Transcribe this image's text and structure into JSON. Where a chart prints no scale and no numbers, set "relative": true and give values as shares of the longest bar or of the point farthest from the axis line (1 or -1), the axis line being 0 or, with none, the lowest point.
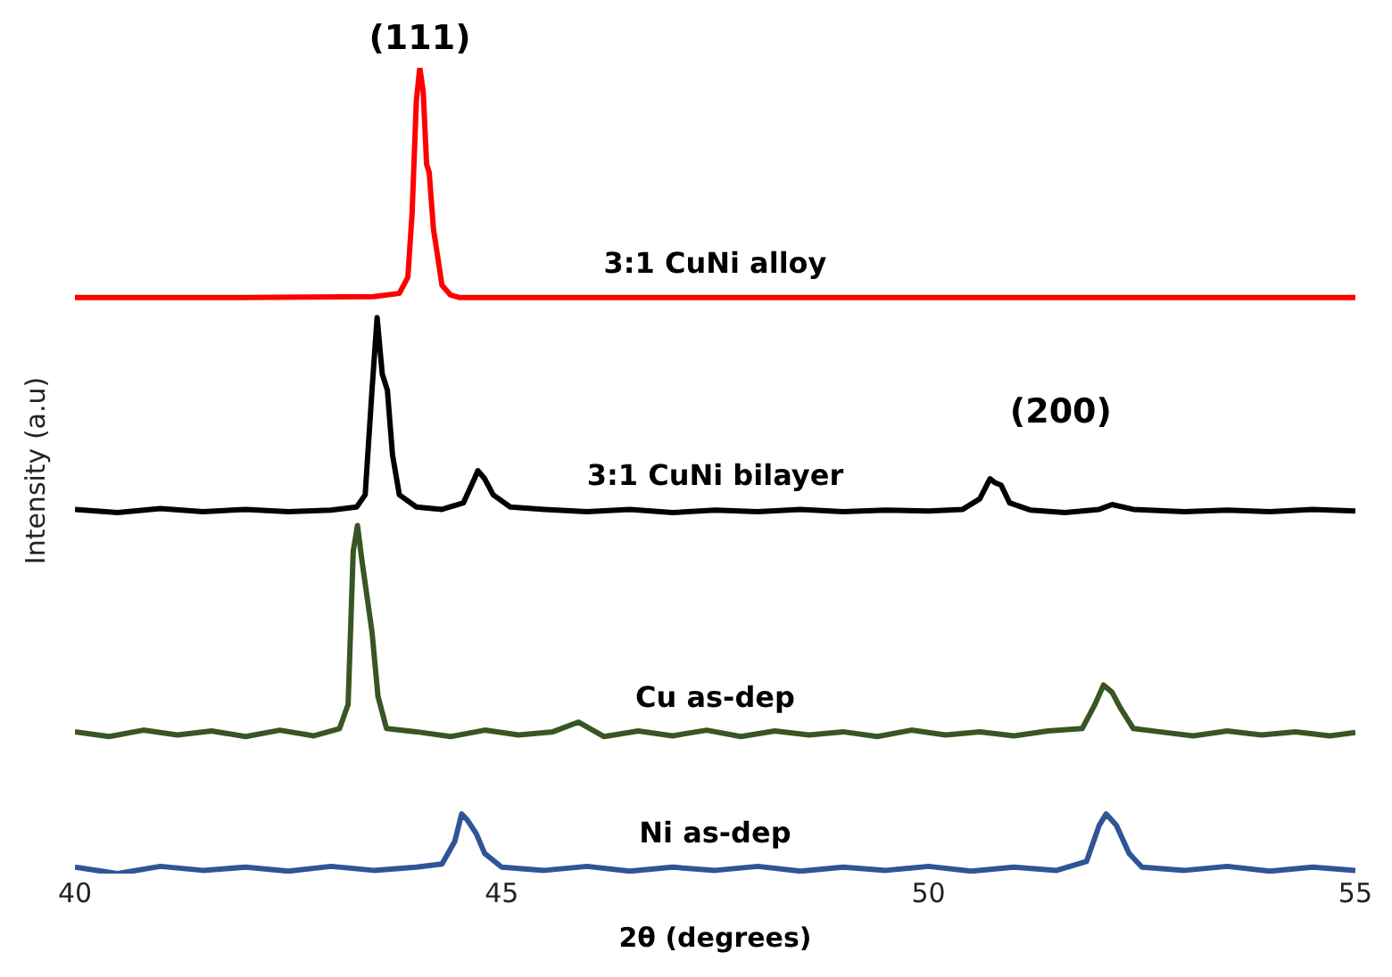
{
  "chart_data": {
    "type": "line",
    "relative": true,
    "xlabel": "2θ (degrees)",
    "ylabel": "Intensity (a.u)",
    "xlim": [
      40,
      55
    ],
    "xticks": [
      40,
      45,
      50,
      55
    ],
    "grid": false,
    "legend": false,
    "marker": "none",
    "line_style": "solid",
    "annotations": [
      {
        "text": "(111)",
        "x": 44.04,
        "y": 1.0
      },
      "(200)"
    ],
    "series": [
      {
        "name": "3:1 CuNi alloy",
        "color": "#ff0000",
        "x": [
          40,
          42,
          43.5,
          43.8,
          43.9,
          43.95,
          44.0,
          44.04,
          44.08,
          44.12,
          44.15,
          44.2,
          44.3,
          44.4,
          44.5,
          45,
          47,
          50,
          53,
          55
        ],
        "values": [
          0.715,
          0.715,
          0.716,
          0.72,
          0.74,
          0.82,
          0.96,
          1.0,
          0.97,
          0.88,
          0.87,
          0.8,
          0.73,
          0.718,
          0.715,
          0.715,
          0.715,
          0.715,
          0.715,
          0.715
        ]
      },
      {
        "name": "3:1 CuNi bilayer",
        "color": "#000000",
        "x": [
          40,
          40.5,
          41,
          41.5,
          42,
          42.5,
          43,
          43.3,
          43.4,
          43.48,
          43.54,
          43.6,
          43.66,
          43.72,
          43.8,
          44.0,
          44.3,
          44.55,
          44.68,
          44.72,
          44.8,
          44.9,
          45.1,
          45.5,
          46,
          46.5,
          47,
          47.5,
          48,
          48.5,
          49,
          49.5,
          50,
          50.4,
          50.6,
          50.72,
          50.78,
          50.85,
          50.95,
          51.2,
          51.6,
          52,
          52.15,
          52.4,
          53,
          53.5,
          54,
          54.5,
          55
        ],
        "values": [
          0.452,
          0.448,
          0.453,
          0.449,
          0.452,
          0.449,
          0.451,
          0.455,
          0.47,
          0.6,
          0.69,
          0.62,
          0.6,
          0.52,
          0.47,
          0.455,
          0.452,
          0.46,
          0.49,
          0.5,
          0.49,
          0.47,
          0.455,
          0.452,
          0.449,
          0.452,
          0.448,
          0.451,
          0.449,
          0.452,
          0.449,
          0.451,
          0.45,
          0.452,
          0.465,
          0.49,
          0.485,
          0.482,
          0.46,
          0.451,
          0.448,
          0.452,
          0.458,
          0.452,
          0.449,
          0.451,
          0.449,
          0.452,
          0.45
        ]
      },
      {
        "name": "Cu as-dep",
        "color": "#375623",
        "x": [
          40,
          40.4,
          40.8,
          41.2,
          41.6,
          42,
          42.4,
          42.8,
          43.1,
          43.2,
          43.26,
          43.31,
          43.36,
          43.42,
          43.48,
          43.55,
          43.65,
          44,
          44.4,
          44.8,
          45.2,
          45.6,
          45.9,
          46.2,
          46.6,
          47,
          47.4,
          47.8,
          48.2,
          48.6,
          49,
          49.4,
          49.8,
          50.2,
          50.6,
          51,
          51.4,
          51.8,
          51.95,
          52.05,
          52.15,
          52.25,
          52.4,
          52.7,
          53.1,
          53.5,
          53.9,
          54.3,
          54.7,
          55
        ],
        "values": [
          0.176,
          0.17,
          0.178,
          0.172,
          0.177,
          0.17,
          0.178,
          0.171,
          0.18,
          0.21,
          0.4,
          0.432,
          0.39,
          0.345,
          0.3,
          0.22,
          0.18,
          0.176,
          0.17,
          0.178,
          0.172,
          0.176,
          0.188,
          0.17,
          0.177,
          0.171,
          0.178,
          0.17,
          0.177,
          0.172,
          0.176,
          0.17,
          0.178,
          0.172,
          0.176,
          0.171,
          0.177,
          0.18,
          0.21,
          0.234,
          0.225,
          0.205,
          0.18,
          0.176,
          0.171,
          0.177,
          0.172,
          0.176,
          0.171,
          0.175
        ]
      },
      {
        "name": "Ni as-dep",
        "color": "#2f5597",
        "x": [
          40,
          40.5,
          41,
          41.5,
          42,
          42.5,
          43,
          43.5,
          44,
          44.3,
          44.45,
          44.53,
          44.6,
          44.7,
          44.8,
          45,
          45.5,
          46,
          46.5,
          47,
          47.5,
          48,
          48.5,
          49,
          49.5,
          50,
          50.5,
          51,
          51.5,
          51.85,
          52,
          52.08,
          52.2,
          52.35,
          52.5,
          53,
          53.5,
          54,
          54.5,
          55
        ],
        "values": [
          0.008,
          0.0,
          0.009,
          0.004,
          0.008,
          0.003,
          0.009,
          0.004,
          0.008,
          0.012,
          0.04,
          0.074,
          0.066,
          0.05,
          0.025,
          0.008,
          0.004,
          0.009,
          0.003,
          0.008,
          0.004,
          0.009,
          0.003,
          0.008,
          0.004,
          0.009,
          0.003,
          0.008,
          0.004,
          0.015,
          0.06,
          0.074,
          0.06,
          0.025,
          0.008,
          0.004,
          0.009,
          0.003,
          0.008,
          0.004
        ]
      }
    ]
  }
}
